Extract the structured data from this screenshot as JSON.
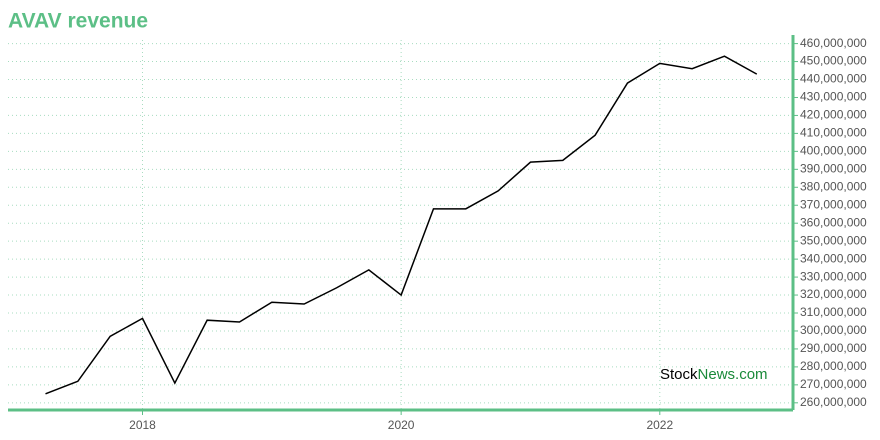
{
  "chart_data": {
    "type": "line",
    "title": "AVAV revenue",
    "x": [
      2017.25,
      2017.5,
      2017.75,
      2018,
      2018.25,
      2018.5,
      2018.75,
      2019,
      2019.25,
      2019.5,
      2019.75,
      2020,
      2020.25,
      2020.5,
      2020.75,
      2021,
      2021.25,
      2021.5,
      2021.75,
      2022,
      2022.25,
      2022.5,
      2022.75
    ],
    "series": [
      {
        "name": "revenue",
        "color": "#000000",
        "values": [
          265000000,
          272000000,
          297000000,
          307000000,
          271000000,
          306000000,
          305000000,
          316000000,
          315000000,
          324000000,
          334000000,
          320000000,
          368000000,
          368000000,
          378000000,
          394000000,
          395000000,
          409000000,
          438000000,
          449000000,
          446000000,
          453000000,
          443000000
        ]
      }
    ],
    "xlim": [
      2016.96,
      2023.03
    ],
    "xticks": [
      2018,
      2020,
      2022
    ],
    "ylim": [
      256000000,
      462000000
    ],
    "yticks": [
      {
        "value": 260000000,
        "label": "260,000,000"
      },
      {
        "value": 270000000,
        "label": "270,000,000"
      },
      {
        "value": 280000000,
        "label": "280,000,000"
      },
      {
        "value": 290000000,
        "label": "290,000,000"
      },
      {
        "value": 300000000,
        "label": "300,000,000"
      },
      {
        "value": 310000000,
        "label": "310,000,000"
      },
      {
        "value": 320000000,
        "label": "320,000,000"
      },
      {
        "value": 330000000,
        "label": "330,000,000"
      },
      {
        "value": 340000000,
        "label": "340,000,000"
      },
      {
        "value": 350000000,
        "label": "350,000,000"
      },
      {
        "value": 360000000,
        "label": "360,000,000"
      },
      {
        "value": 370000000,
        "label": "370,000,000"
      },
      {
        "value": 380000000,
        "label": "380,000,000"
      },
      {
        "value": 390000000,
        "label": "390,000,000"
      },
      {
        "value": 400000000,
        "label": "400,000,000"
      },
      {
        "value": 410000000,
        "label": "410,000,000"
      },
      {
        "value": 420000000,
        "label": "420,000,000"
      },
      {
        "value": 430000000,
        "label": "430,000,000"
      },
      {
        "value": 440000000,
        "label": "440,000,000"
      },
      {
        "value": 450000000,
        "label": "450,000,000"
      },
      {
        "value": 460000000,
        "label": "460,000,000"
      }
    ],
    "grid": true,
    "axis_color": "#5cbf86",
    "grid_color": "#a8dcc0",
    "watermark": [
      "Stock",
      "News.com"
    ]
  }
}
